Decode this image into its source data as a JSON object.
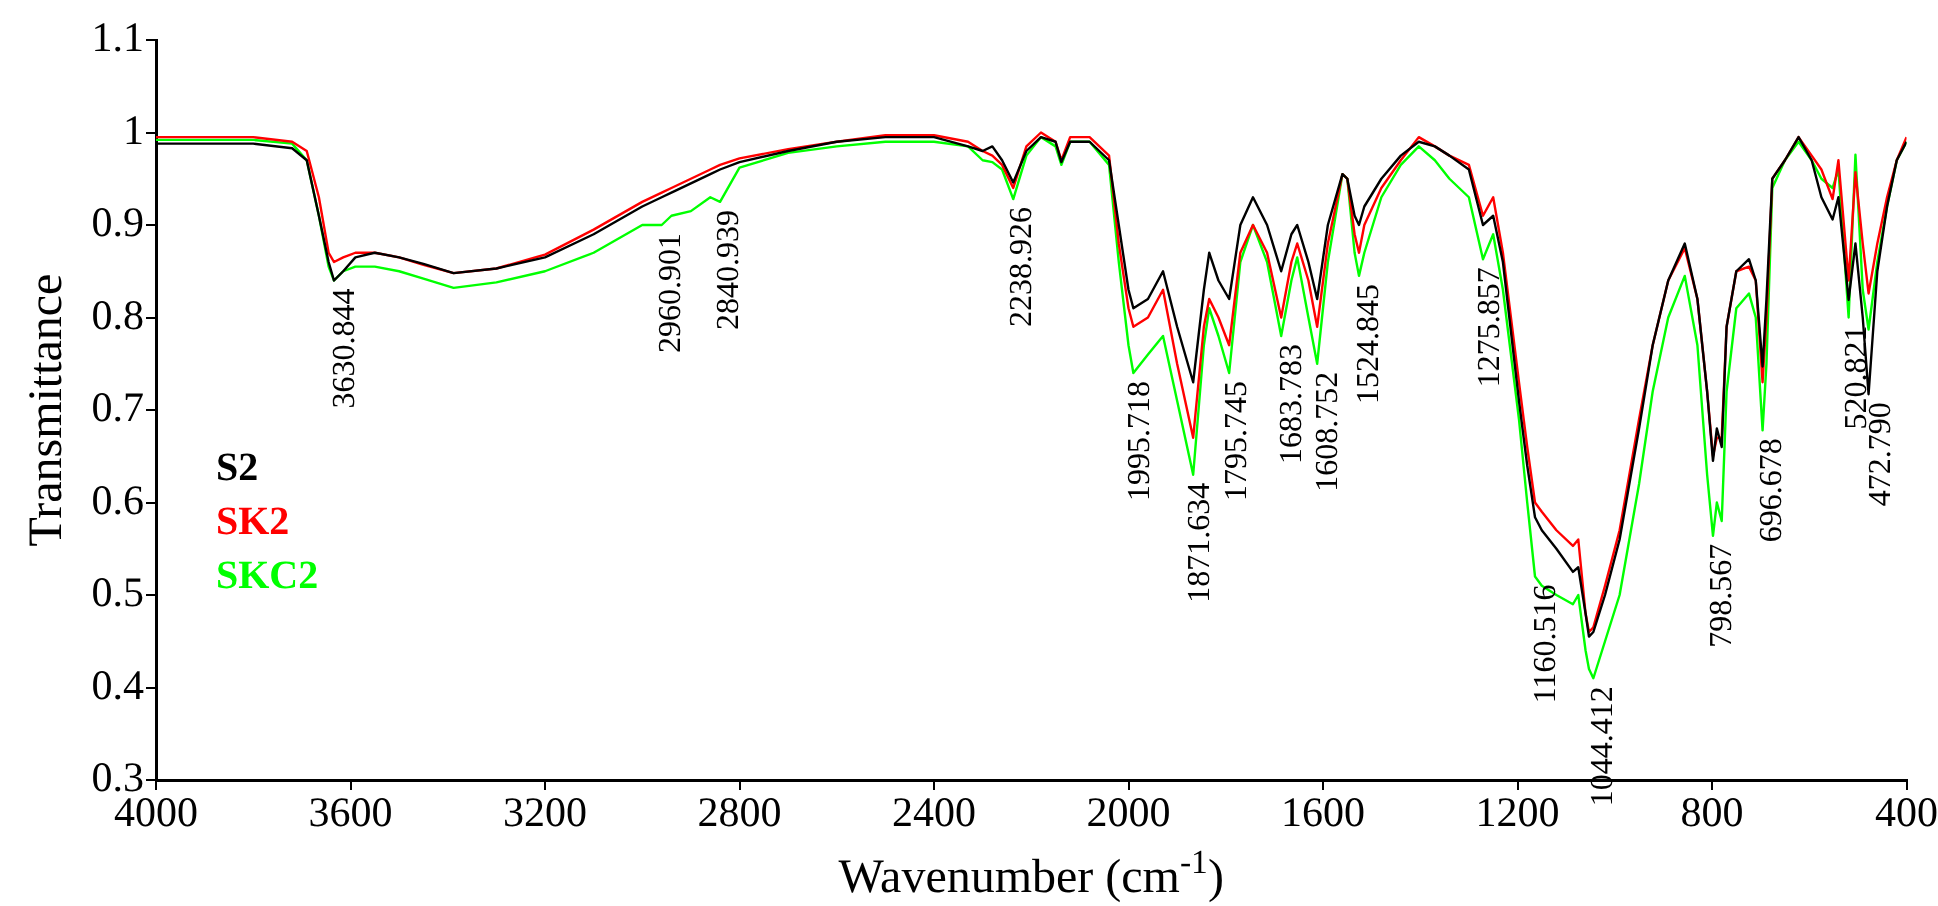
{
  "chart_data": {
    "type": "line",
    "xlabel": "Wavenumber (cm$^{-1}$)",
    "ylabel": "Transmittance",
    "x": [
      4000,
      3800,
      3720,
      3690,
      3665,
      3645,
      3634,
      3615,
      3590,
      3550,
      3500,
      3450,
      3388,
      3300,
      3200,
      3100,
      3000,
      2960,
      2940,
      2900,
      2860,
      2840,
      2800,
      2700,
      2600,
      2500,
      2400,
      2330,
      2300,
      2280,
      2260,
      2237,
      2210,
      2180,
      2150,
      2138,
      2120,
      2080,
      2040,
      2020,
      2000,
      1990,
      1960,
      1929,
      1900,
      1867,
      1845,
      1834,
      1815,
      1793,
      1770,
      1744,
      1715,
      1686,
      1665,
      1653,
      1630,
      1612,
      1590,
      1560,
      1550,
      1535,
      1526,
      1515,
      1480,
      1440,
      1403,
      1370,
      1340,
      1300,
      1271,
      1250,
      1230,
      1197,
      1180,
      1164,
      1150,
      1120,
      1086,
      1075,
      1060,
      1053,
      1044,
      1020,
      990,
      950,
      922,
      890,
      856,
      830,
      810,
      798,
      790,
      780,
      770,
      750,
      724,
      710,
      696,
      688,
      676,
      650,
      622,
      595,
      575,
      552,
      540,
      519,
      505,
      490,
      478,
      460,
      440,
      420,
      400
    ],
    "series": [
      {
        "name": "S2",
        "color": "#000000",
        "values": [
          0.988,
          0.988,
          0.983,
          0.97,
          0.91,
          0.86,
          0.84,
          0.85,
          0.865,
          0.87,
          0.865,
          0.858,
          0.848,
          0.853,
          0.865,
          0.89,
          0.92,
          0.93,
          0.935,
          0.945,
          0.955,
          0.96,
          0.968,
          0.98,
          0.99,
          0.995,
          0.995,
          0.985,
          0.98,
          0.985,
          0.97,
          0.946,
          0.98,
          0.995,
          0.99,
          0.968,
          0.99,
          0.99,
          0.97,
          0.9,
          0.83,
          0.81,
          0.82,
          0.85,
          0.79,
          0.73,
          0.83,
          0.87,
          0.84,
          0.82,
          0.9,
          0.93,
          0.9,
          0.85,
          0.89,
          0.9,
          0.86,
          0.82,
          0.9,
          0.955,
          0.95,
          0.91,
          0.9,
          0.92,
          0.95,
          0.975,
          0.99,
          0.985,
          0.975,
          0.96,
          0.9,
          0.91,
          0.86,
          0.71,
          0.64,
          0.584,
          0.57,
          0.55,
          0.525,
          0.53,
          0.48,
          0.455,
          0.46,
          0.5,
          0.56,
          0.68,
          0.77,
          0.84,
          0.88,
          0.82,
          0.72,
          0.645,
          0.68,
          0.66,
          0.79,
          0.85,
          0.863,
          0.84,
          0.747,
          0.82,
          0.95,
          0.97,
          0.995,
          0.97,
          0.93,
          0.906,
          0.93,
          0.819,
          0.88,
          0.8,
          0.717,
          0.85,
          0.92,
          0.97,
          0.99
        ]
      },
      {
        "name": "SK2",
        "color": "#ff0000",
        "values": [
          0.995,
          0.995,
          0.99,
          0.98,
          0.93,
          0.87,
          0.86,
          0.865,
          0.87,
          0.87,
          0.865,
          0.857,
          0.848,
          0.853,
          0.868,
          0.895,
          0.925,
          0.935,
          0.94,
          0.95,
          0.96,
          0.965,
          0.972,
          0.982,
          0.99,
          0.997,
          0.997,
          0.99,
          0.98,
          0.975,
          0.965,
          0.94,
          0.985,
          1.0,
          0.99,
          0.97,
          0.995,
          0.995,
          0.975,
          0.88,
          0.81,
          0.79,
          0.8,
          0.83,
          0.75,
          0.67,
          0.79,
          0.82,
          0.8,
          0.77,
          0.87,
          0.9,
          0.87,
          0.8,
          0.86,
          0.88,
          0.84,
          0.79,
          0.88,
          0.955,
          0.95,
          0.89,
          0.87,
          0.9,
          0.94,
          0.97,
          0.995,
          0.985,
          0.975,
          0.965,
          0.91,
          0.93,
          0.87,
          0.73,
          0.66,
          0.6,
          0.59,
          0.57,
          0.553,
          0.56,
          0.48,
          0.46,
          0.465,
          0.51,
          0.57,
          0.69,
          0.77,
          0.84,
          0.875,
          0.82,
          0.72,
          0.65,
          0.67,
          0.67,
          0.79,
          0.85,
          0.855,
          0.84,
          0.73,
          0.8,
          0.95,
          0.97,
          0.995,
          0.975,
          0.96,
          0.928,
          0.97,
          0.84,
          0.957,
          0.88,
          0.826,
          0.88,
          0.93,
          0.97,
          0.995
        ]
      },
      {
        "name": "SKC2",
        "color": "#00ff00",
        "values": [
          0.992,
          0.992,
          0.988,
          0.97,
          0.91,
          0.855,
          0.84,
          0.85,
          0.855,
          0.855,
          0.85,
          0.842,
          0.832,
          0.838,
          0.85,
          0.87,
          0.9,
          0.9,
          0.91,
          0.915,
          0.93,
          0.925,
          0.962,
          0.978,
          0.985,
          0.99,
          0.99,
          0.985,
          0.97,
          0.968,
          0.96,
          0.928,
          0.975,
          0.995,
          0.985,
          0.965,
          0.99,
          0.99,
          0.965,
          0.86,
          0.77,
          0.74,
          0.76,
          0.78,
          0.71,
          0.63,
          0.77,
          0.81,
          0.78,
          0.74,
          0.86,
          0.9,
          0.86,
          0.78,
          0.84,
          0.865,
          0.8,
          0.75,
          0.86,
          0.955,
          0.95,
          0.87,
          0.845,
          0.87,
          0.93,
          0.965,
          0.985,
          0.97,
          0.95,
          0.93,
          0.863,
          0.89,
          0.83,
          0.69,
          0.6,
          0.52,
          0.51,
          0.5,
          0.49,
          0.5,
          0.44,
          0.42,
          0.41,
          0.45,
          0.5,
          0.62,
          0.72,
          0.8,
          0.845,
          0.77,
          0.63,
          0.564,
          0.6,
          0.58,
          0.72,
          0.81,
          0.826,
          0.8,
          0.678,
          0.75,
          0.94,
          0.97,
          0.99,
          0.97,
          0.95,
          0.94,
          0.96,
          0.8,
          0.976,
          0.83,
          0.787,
          0.86,
          0.92,
          0.97,
          0.99
        ]
      }
    ],
    "xlim": [
      4000,
      400
    ],
    "xticks": [
      4000,
      3600,
      3200,
      2800,
      2400,
      2000,
      1600,
      1200,
      800,
      400
    ],
    "ylim": [
      0.3,
      1.1
    ],
    "yticks": [
      0.3,
      0.4,
      0.5,
      0.6,
      0.7,
      0.8,
      0.9,
      1,
      1.1
    ],
    "grid": false,
    "legend": "left",
    "marker": "none",
    "line_style": "solid",
    "annotations": [
      {
        "text": "3630.844",
        "x": 3630.844,
        "y": 0.84
      },
      {
        "text": "2960.901",
        "x": 2960.901,
        "y": 0.9
      },
      {
        "text": "2840.939",
        "x": 2840.939,
        "y": 0.925
      },
      {
        "text": "2238.926",
        "x": 2238.926,
        "y": 0.928
      },
      {
        "text": "1995.718",
        "x": 1995.718,
        "y": 0.74
      },
      {
        "text": "1871.634",
        "x": 1871.634,
        "y": 0.63
      },
      {
        "text": "1795.745",
        "x": 1795.745,
        "y": 0.74
      },
      {
        "text": "1683.783",
        "x": 1683.783,
        "y": 0.78
      },
      {
        "text": "1608.752",
        "x": 1608.752,
        "y": 0.75
      },
      {
        "text": "1524.845",
        "x": 1524.845,
        "y": 0.845
      },
      {
        "text": "1275.857",
        "x": 1275.857,
        "y": 0.863
      },
      {
        "text": "1160.516",
        "x": 1160.516,
        "y": 0.52
      },
      {
        "text": "1044.412",
        "x": 1044.412,
        "y": 0.41
      },
      {
        "text": "798.567",
        "x": 798.567,
        "y": 0.564
      },
      {
        "text": "696.678",
        "x": 696.678,
        "y": 0.678
      },
      {
        "text": "520.821",
        "x": 520.821,
        "y": 0.8
      },
      {
        "text": "472.790",
        "x": 472.79,
        "y": 0.717
      }
    ]
  }
}
